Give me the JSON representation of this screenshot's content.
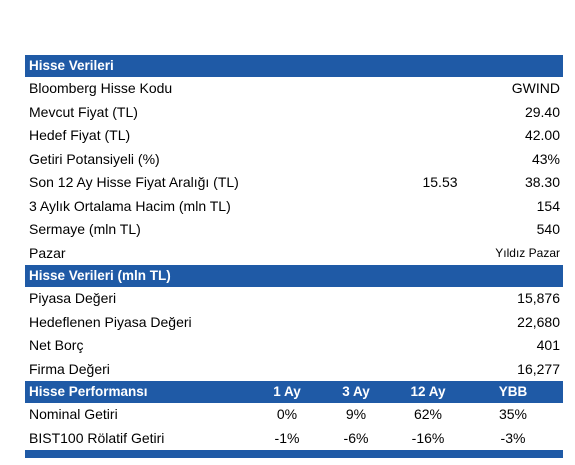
{
  "sections": [
    {
      "title": "Hisse Verileri",
      "rows": [
        [
          "Bloomberg Hisse Kodu",
          "GWIND"
        ],
        [
          "Mevcut Fiyat (TL)",
          "29.40"
        ],
        [
          "Hedef Fiyat (TL)",
          "42.00"
        ],
        [
          "Getiri Potansiyeli (%)",
          "43%"
        ],
        [
          "Son 12 Ay Hisse Fiyat Aralığı (TL)",
          "15.53",
          "38.30"
        ],
        [
          "3 Aylık Ortalama Hacim (mln TL)",
          "154"
        ],
        [
          "Sermaye (mln TL)",
          "540"
        ],
        [
          "Pazar",
          "Yıldız Pazar"
        ]
      ]
    },
    {
      "title": "Hisse Verileri (mln TL)",
      "rows": [
        [
          "Piyasa Değeri",
          "15,876"
        ],
        [
          "Hedeflenen Piyasa Değeri",
          "22,680"
        ],
        [
          "Net Borç",
          "401"
        ],
        [
          "Firma Değeri",
          "16,277"
        ]
      ]
    },
    {
      "title": "Hisse Performansı",
      "columns": [
        "1 Ay",
        "3 Ay",
        "12 Ay",
        "YBB"
      ],
      "rows": [
        [
          "Nominal Getiri",
          "0%",
          "9%",
          "62%",
          "35%"
        ],
        [
          "BIST100 Rölatif Getiri",
          "-1%",
          "-6%",
          "-16%",
          "-3%"
        ]
      ]
    }
  ]
}
